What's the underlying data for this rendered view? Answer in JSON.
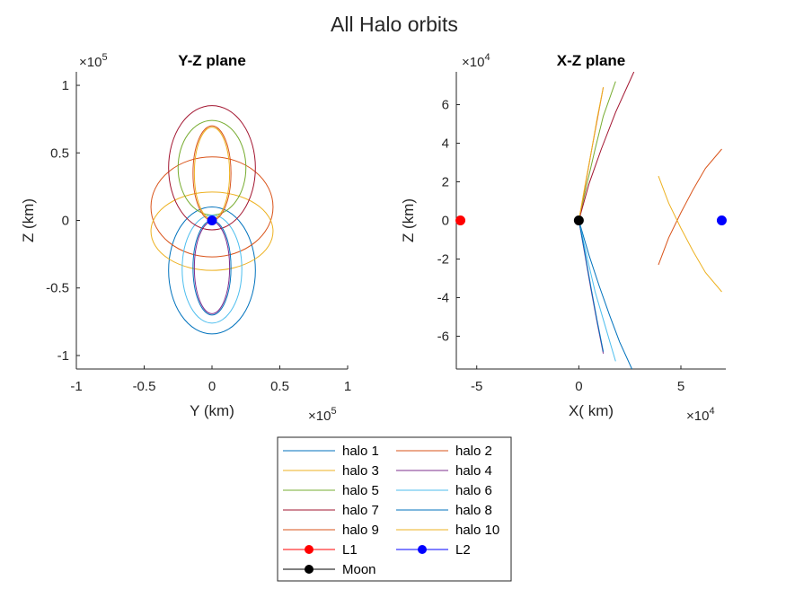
{
  "figure_title": "All Halo orbits",
  "chart_data": [
    {
      "type": "line",
      "title": "Y-Z plane",
      "xlabel": "Y (km)",
      "ylabel": "Z (km)",
      "x_exponent": "×10",
      "x_exponent_power": "5",
      "y_exponent": "×10",
      "y_exponent_power": "5",
      "xlim": [
        -1,
        1
      ],
      "ylim": [
        -1.1,
        1.1
      ],
      "xticks": [
        -1,
        -0.5,
        0,
        0.5,
        1
      ],
      "xtick_labels": [
        "-1",
        "-0.5",
        "0",
        "0.5",
        "1"
      ],
      "yticks": [
        -1,
        -0.5,
        0,
        0.5,
        1
      ],
      "ytick_labels": [
        "-1",
        "-0.5",
        "0",
        "0.5",
        "1"
      ],
      "series": [
        {
          "name": "halo 1",
          "shape": "ellipse",
          "center": [
            0,
            -0.37
          ],
          "radii": [
            0.32,
            0.47
          ]
        },
        {
          "name": "halo 2",
          "shape": "ellipse",
          "center": [
            0,
            0.1
          ],
          "radii": [
            0.45,
            0.37
          ]
        },
        {
          "name": "halo 3",
          "shape": "ellipse",
          "center": [
            0,
            -0.08
          ],
          "radii": [
            0.45,
            0.29
          ]
        },
        {
          "name": "halo 4",
          "shape": "ellipse",
          "center": [
            0,
            -0.35
          ],
          "radii": [
            0.13,
            0.34
          ]
        },
        {
          "name": "halo 5",
          "shape": "ellipse",
          "center": [
            0,
            0.39
          ],
          "radii": [
            0.25,
            0.35
          ]
        },
        {
          "name": "halo 6",
          "shape": "ellipse",
          "center": [
            0,
            -0.36
          ],
          "radii": [
            0.22,
            0.4
          ]
        },
        {
          "name": "halo 7",
          "shape": "ellipse",
          "center": [
            0,
            0.39
          ],
          "radii": [
            0.32,
            0.46
          ]
        },
        {
          "name": "halo 8",
          "shape": "ellipse",
          "center": [
            0,
            -0.35
          ],
          "radii": [
            0.14,
            0.35
          ]
        },
        {
          "name": "halo 9",
          "shape": "ellipse",
          "center": [
            0,
            0.35
          ],
          "radii": [
            0.14,
            0.35
          ]
        },
        {
          "name": "halo 10",
          "shape": "ellipse",
          "center": [
            0,
            0.35
          ],
          "radii": [
            0.13,
            0.34
          ]
        }
      ],
      "markers": [
        {
          "name": "L2",
          "x": 0,
          "y": 0
        }
      ]
    },
    {
      "type": "line",
      "title": "X-Z plane",
      "xlabel": "X( km)",
      "ylabel": "Z (km)",
      "x_exponent": "×10",
      "x_exponent_power": "4",
      "y_exponent": "×10",
      "y_exponent_power": "4",
      "xlim": [
        -6,
        7.2
      ],
      "ylim": [
        -7.7,
        7.7
      ],
      "xticks": [
        -5,
        0,
        5
      ],
      "xtick_labels": [
        "-5",
        "0",
        "5"
      ],
      "yticks": [
        -6,
        -4,
        -2,
        0,
        2,
        4,
        6
      ],
      "ytick_labels": [
        "-6",
        "-4",
        "-2",
        "0",
        "2",
        "4",
        "6"
      ],
      "series": [
        {
          "name": "halo 1",
          "x": [
            0,
            0.5,
            1.0,
            1.5,
            2.0,
            2.6
          ],
          "y": [
            0,
            -1.8,
            -3.4,
            -4.9,
            -6.3,
            -7.7
          ]
        },
        {
          "name": "halo 2",
          "x": [
            3.9,
            4.4,
            5.0,
            5.6,
            6.2,
            7.0
          ],
          "y": [
            -2.3,
            -0.9,
            0.4,
            1.6,
            2.7,
            3.7
          ]
        },
        {
          "name": "halo 3",
          "x": [
            3.9,
            4.4,
            5.0,
            5.6,
            6.2,
            7.0
          ],
          "y": [
            2.3,
            0.9,
            -0.4,
            -1.6,
            -2.7,
            -3.7
          ]
        },
        {
          "name": "halo 4",
          "x": [
            0,
            0.3,
            0.6,
            0.9,
            1.2
          ],
          "y": [
            0,
            -1.8,
            -3.6,
            -5.3,
            -6.9
          ]
        },
        {
          "name": "halo 5",
          "x": [
            0,
            0.4,
            0.8,
            1.2,
            1.8
          ],
          "y": [
            0,
            1.9,
            3.7,
            5.4,
            7.2
          ]
        },
        {
          "name": "halo 6",
          "x": [
            0,
            0.4,
            0.8,
            1.3,
            1.8
          ],
          "y": [
            0,
            -1.9,
            -3.7,
            -5.5,
            -7.3
          ]
        },
        {
          "name": "halo 7",
          "x": [
            0,
            0.5,
            1.1,
            1.8,
            2.7
          ],
          "y": [
            0,
            1.9,
            3.7,
            5.6,
            7.7
          ]
        },
        {
          "name": "halo 8",
          "x": [
            0,
            0.3,
            0.6,
            0.9,
            1.2
          ],
          "y": [
            0,
            -1.7,
            -3.5,
            -5.2,
            -6.8
          ]
        },
        {
          "name": "halo 9",
          "x": [
            0,
            0.3,
            0.6,
            0.9,
            1.2
          ],
          "y": [
            0,
            1.7,
            3.5,
            5.2,
            6.9
          ]
        },
        {
          "name": "halo 10",
          "x": [
            0,
            0.3,
            0.6,
            0.9,
            1.2
          ],
          "y": [
            0,
            1.8,
            3.5,
            5.3,
            6.9
          ]
        }
      ],
      "markers": [
        {
          "name": "L1",
          "x": -5.8,
          "y": 0
        },
        {
          "name": "L2",
          "x": 7.0,
          "y": 0
        },
        {
          "name": "Moon",
          "x": 0,
          "y": 0
        }
      ]
    }
  ],
  "legend": {
    "entries": [
      {
        "label": "halo 1",
        "color": "#0072bd",
        "kind": "line"
      },
      {
        "label": "halo 2",
        "color": "#d95319",
        "kind": "line"
      },
      {
        "label": "halo 3",
        "color": "#edb120",
        "kind": "line"
      },
      {
        "label": "halo 4",
        "color": "#7e2f8e",
        "kind": "line"
      },
      {
        "label": "halo 5",
        "color": "#77ac30",
        "kind": "line"
      },
      {
        "label": "halo 6",
        "color": "#4dbeee",
        "kind": "line"
      },
      {
        "label": "halo 7",
        "color": "#a2142f",
        "kind": "line"
      },
      {
        "label": "halo 8",
        "color": "#0072bd",
        "kind": "line"
      },
      {
        "label": "halo 9",
        "color": "#d95319",
        "kind": "line"
      },
      {
        "label": "halo 10",
        "color": "#edb120",
        "kind": "line"
      },
      {
        "label": "L1",
        "color": "#ff0000",
        "kind": "marker"
      },
      {
        "label": "L2",
        "color": "#0000ff",
        "kind": "marker"
      },
      {
        "label": "Moon",
        "color": "#000000",
        "kind": "marker"
      }
    ],
    "placement": "bottom-center",
    "columns": 2
  }
}
